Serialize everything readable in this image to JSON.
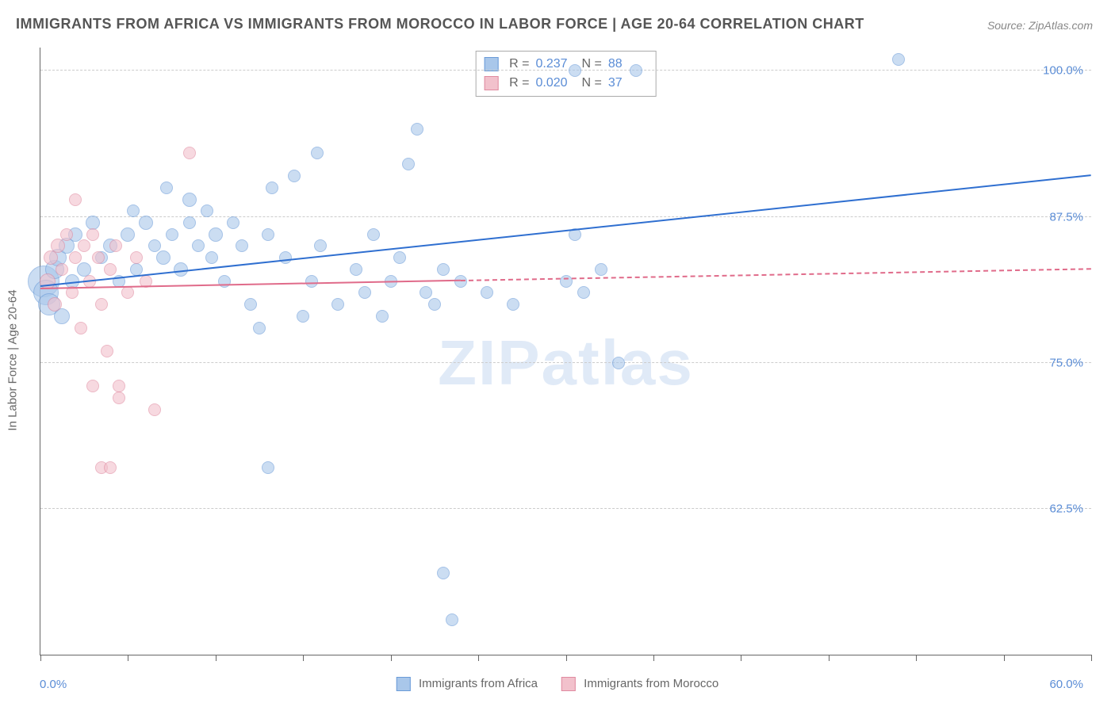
{
  "title": "IMMIGRANTS FROM AFRICA VS IMMIGRANTS FROM MOROCCO IN LABOR FORCE | AGE 20-64 CORRELATION CHART",
  "source": "Source: ZipAtlas.com",
  "ylabel": "In Labor Force | Age 20-64",
  "watermark": "ZIPatlas",
  "chart": {
    "type": "scatter",
    "xlim": [
      0,
      60
    ],
    "ylim": [
      50,
      102
    ],
    "yticks": [
      {
        "v": 62.5,
        "label": "62.5%"
      },
      {
        "v": 75.0,
        "label": "75.0%"
      },
      {
        "v": 87.5,
        "label": "87.5%"
      },
      {
        "v": 100.0,
        "label": "100.0%"
      }
    ],
    "xticks_major": [
      0,
      5,
      10,
      15,
      20,
      25,
      30,
      35,
      40,
      45,
      50,
      55,
      60
    ],
    "xaxis_labels": {
      "left": "0.0%",
      "right": "60.0%"
    },
    "grid_color": "#cccccc",
    "axis_color": "#666666",
    "background_color": "#ffffff"
  },
  "series": [
    {
      "name": "Immigrants from Africa",
      "fill": "#a9c7ea",
      "stroke": "#6a9bd8",
      "line_color": "#2f6fd0",
      "opacity": 0.6,
      "r_value": "0.237",
      "n_value": "88",
      "trend": {
        "x0": 0,
        "y0": 81.5,
        "x1": 60,
        "y1": 91.0,
        "solid": true
      },
      "points": [
        {
          "x": 0.2,
          "y": 82,
          "r": 20
        },
        {
          "x": 0.3,
          "y": 81,
          "r": 16
        },
        {
          "x": 0.5,
          "y": 80,
          "r": 14
        },
        {
          "x": 0.8,
          "y": 83,
          "r": 12
        },
        {
          "x": 1.0,
          "y": 84,
          "r": 11
        },
        {
          "x": 1.2,
          "y": 79,
          "r": 10
        },
        {
          "x": 1.5,
          "y": 85,
          "r": 10
        },
        {
          "x": 1.8,
          "y": 82,
          "r": 9
        },
        {
          "x": 2.0,
          "y": 86,
          "r": 9
        },
        {
          "x": 2.5,
          "y": 83,
          "r": 9
        },
        {
          "x": 3.0,
          "y": 87,
          "r": 9
        },
        {
          "x": 3.5,
          "y": 84,
          "r": 8
        },
        {
          "x": 4.0,
          "y": 85,
          "r": 9
        },
        {
          "x": 4.5,
          "y": 82,
          "r": 8
        },
        {
          "x": 5.0,
          "y": 86,
          "r": 9
        },
        {
          "x": 5.3,
          "y": 88,
          "r": 8
        },
        {
          "x": 5.5,
          "y": 83,
          "r": 8
        },
        {
          "x": 6.0,
          "y": 87,
          "r": 9
        },
        {
          "x": 6.5,
          "y": 85,
          "r": 8
        },
        {
          "x": 7.0,
          "y": 84,
          "r": 9
        },
        {
          "x": 7.2,
          "y": 90,
          "r": 8
        },
        {
          "x": 7.5,
          "y": 86,
          "r": 8
        },
        {
          "x": 8.0,
          "y": 83,
          "r": 9
        },
        {
          "x": 8.5,
          "y": 87,
          "r": 8
        },
        {
          "x": 8.5,
          "y": 89,
          "r": 9
        },
        {
          "x": 9.0,
          "y": 85,
          "r": 8
        },
        {
          "x": 9.5,
          "y": 88,
          "r": 8
        },
        {
          "x": 9.8,
          "y": 84,
          "r": 8
        },
        {
          "x": 10.0,
          "y": 86,
          "r": 9
        },
        {
          "x": 10.5,
          "y": 82,
          "r": 8
        },
        {
          "x": 11.0,
          "y": 87,
          "r": 8
        },
        {
          "x": 11.5,
          "y": 85,
          "r": 8
        },
        {
          "x": 12.0,
          "y": 80,
          "r": 8
        },
        {
          "x": 12.5,
          "y": 78,
          "r": 8
        },
        {
          "x": 13.0,
          "y": 86,
          "r": 8
        },
        {
          "x": 13.0,
          "y": 66,
          "r": 8
        },
        {
          "x": 13.2,
          "y": 90,
          "r": 8
        },
        {
          "x": 14.0,
          "y": 84,
          "r": 8
        },
        {
          "x": 14.5,
          "y": 91,
          "r": 8
        },
        {
          "x": 15.0,
          "y": 79,
          "r": 8
        },
        {
          "x": 15.5,
          "y": 82,
          "r": 8
        },
        {
          "x": 15.8,
          "y": 93,
          "r": 8
        },
        {
          "x": 16.0,
          "y": 85,
          "r": 8
        },
        {
          "x": 17.0,
          "y": 80,
          "r": 8
        },
        {
          "x": 18.0,
          "y": 83,
          "r": 8
        },
        {
          "x": 18.5,
          "y": 81,
          "r": 8
        },
        {
          "x": 19.0,
          "y": 86,
          "r": 8
        },
        {
          "x": 19.5,
          "y": 79,
          "r": 8
        },
        {
          "x": 20.0,
          "y": 82,
          "r": 8
        },
        {
          "x": 20.5,
          "y": 84,
          "r": 8
        },
        {
          "x": 21.0,
          "y": 92,
          "r": 8
        },
        {
          "x": 21.5,
          "y": 95,
          "r": 8
        },
        {
          "x": 22.0,
          "y": 81,
          "r": 8
        },
        {
          "x": 22.5,
          "y": 80,
          "r": 8
        },
        {
          "x": 23.0,
          "y": 57,
          "r": 8
        },
        {
          "x": 23.0,
          "y": 83,
          "r": 8
        },
        {
          "x": 23.5,
          "y": 53,
          "r": 8
        },
        {
          "x": 24.0,
          "y": 82,
          "r": 8
        },
        {
          "x": 25.5,
          "y": 81,
          "r": 8
        },
        {
          "x": 27.0,
          "y": 80,
          "r": 8
        },
        {
          "x": 30.0,
          "y": 82,
          "r": 8
        },
        {
          "x": 30.5,
          "y": 100,
          "r": 8
        },
        {
          "x": 30.5,
          "y": 86,
          "r": 8
        },
        {
          "x": 31.0,
          "y": 81,
          "r": 8
        },
        {
          "x": 32.0,
          "y": 83,
          "r": 8
        },
        {
          "x": 33.0,
          "y": 75,
          "r": 8
        },
        {
          "x": 34.0,
          "y": 100,
          "r": 8
        },
        {
          "x": 49.0,
          "y": 101,
          "r": 8
        }
      ]
    },
    {
      "name": "Immigrants from Morocco",
      "fill": "#f2c1cc",
      "stroke": "#e08aa0",
      "line_color": "#e06b8a",
      "opacity": 0.6,
      "r_value": "0.020",
      "n_value": "37",
      "trend": {
        "x0": 0,
        "y0": 81.3,
        "x1": 24,
        "y1": 82.0,
        "solid": true
      },
      "trend_ext": {
        "x0": 24,
        "y0": 82.0,
        "x1": 60,
        "y1": 83.0
      },
      "points": [
        {
          "x": 0.4,
          "y": 82,
          "r": 10
        },
        {
          "x": 0.6,
          "y": 84,
          "r": 9
        },
        {
          "x": 0.8,
          "y": 80,
          "r": 9
        },
        {
          "x": 1.0,
          "y": 85,
          "r": 9
        },
        {
          "x": 1.2,
          "y": 83,
          "r": 8
        },
        {
          "x": 1.5,
          "y": 86,
          "r": 8
        },
        {
          "x": 1.8,
          "y": 81,
          "r": 8
        },
        {
          "x": 2.0,
          "y": 84,
          "r": 8
        },
        {
          "x": 2.0,
          "y": 89,
          "r": 8
        },
        {
          "x": 2.3,
          "y": 78,
          "r": 8
        },
        {
          "x": 2.5,
          "y": 85,
          "r": 8
        },
        {
          "x": 2.8,
          "y": 82,
          "r": 8
        },
        {
          "x": 3.0,
          "y": 86,
          "r": 8
        },
        {
          "x": 3.0,
          "y": 73,
          "r": 8
        },
        {
          "x": 3.3,
          "y": 84,
          "r": 8
        },
        {
          "x": 3.5,
          "y": 80,
          "r": 8
        },
        {
          "x": 3.5,
          "y": 66,
          "r": 8
        },
        {
          "x": 3.8,
          "y": 76,
          "r": 8
        },
        {
          "x": 4.0,
          "y": 83,
          "r": 8
        },
        {
          "x": 4.0,
          "y": 66,
          "r": 8
        },
        {
          "x": 4.3,
          "y": 85,
          "r": 8
        },
        {
          "x": 4.5,
          "y": 72,
          "r": 8
        },
        {
          "x": 4.5,
          "y": 73,
          "r": 8
        },
        {
          "x": 5.0,
          "y": 81,
          "r": 8
        },
        {
          "x": 5.5,
          "y": 84,
          "r": 8
        },
        {
          "x": 6.0,
          "y": 82,
          "r": 8
        },
        {
          "x": 6.5,
          "y": 71,
          "r": 8
        },
        {
          "x": 8.5,
          "y": 93,
          "r": 8
        }
      ]
    }
  ],
  "legend_bottom": [
    {
      "label": "Immigrants from Africa",
      "fill": "#a9c7ea",
      "stroke": "#6a9bd8"
    },
    {
      "label": "Immigrants from Morocco",
      "fill": "#f2c1cc",
      "stroke": "#e08aa0"
    }
  ]
}
